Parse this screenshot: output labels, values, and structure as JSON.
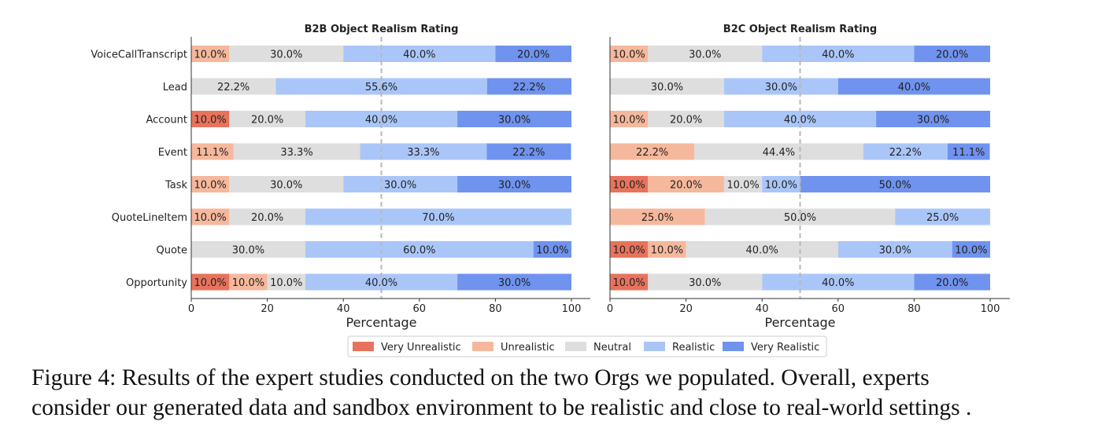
{
  "colors": {
    "Very Unrealistic": "#e8735c",
    "Unrealistic": "#f6b89c",
    "Neutral": "#dedede",
    "Realistic": "#aac6f9",
    "Very Realistic": "#6f93ee"
  },
  "chart_data": [
    {
      "type": "bar",
      "orientation": "horizontal",
      "stacked": true,
      "title": "B2B Object Realism Rating",
      "xlabel": "Percentage",
      "ylabel": "",
      "xlim": [
        0,
        100
      ],
      "xticks": [
        0,
        20,
        40,
        60,
        80,
        100
      ],
      "reference_line_x": 50,
      "categories": [
        "VoiceCallTranscript",
        "Lead",
        "Account",
        "Event",
        "Task",
        "QuoteLineItem",
        "Quote",
        "Opportunity"
      ],
      "series": [
        {
          "name": "Very Unrealistic",
          "values": [
            0,
            0,
            10.0,
            0,
            0,
            0,
            0,
            10.0
          ]
        },
        {
          "name": "Unrealistic",
          "values": [
            10.0,
            0,
            0,
            11.1,
            10.0,
            10.0,
            0,
            10.0
          ]
        },
        {
          "name": "Neutral",
          "values": [
            30.0,
            22.2,
            20.0,
            33.3,
            30.0,
            20.0,
            30.0,
            10.0
          ]
        },
        {
          "name": "Realistic",
          "values": [
            40.0,
            55.6,
            40.0,
            33.3,
            30.0,
            70.0,
            60.0,
            40.0
          ]
        },
        {
          "name": "Very Realistic",
          "values": [
            20.0,
            22.2,
            30.0,
            22.2,
            30.0,
            0,
            10.0,
            30.0
          ]
        }
      ]
    },
    {
      "type": "bar",
      "orientation": "horizontal",
      "stacked": true,
      "title": "B2C Object Realism Rating",
      "xlabel": "Percentage",
      "ylabel": "",
      "xlim": [
        0,
        100
      ],
      "xticks": [
        0,
        20,
        40,
        60,
        80,
        100
      ],
      "reference_line_x": 50,
      "categories": [
        "VoiceCallTranscript",
        "Lead",
        "Account",
        "Event",
        "Task",
        "QuoteLineItem",
        "Quote",
        "Opportunity"
      ],
      "series": [
        {
          "name": "Very Unrealistic",
          "values": [
            0,
            0,
            0,
            0,
            10.0,
            0,
            10.0,
            10.0
          ]
        },
        {
          "name": "Unrealistic",
          "values": [
            10.0,
            0,
            10.0,
            22.2,
            20.0,
            25.0,
            10.0,
            0
          ]
        },
        {
          "name": "Neutral",
          "values": [
            30.0,
            30.0,
            20.0,
            44.4,
            10.0,
            50.0,
            40.0,
            30.0
          ]
        },
        {
          "name": "Realistic",
          "values": [
            40.0,
            30.0,
            40.0,
            22.2,
            10.0,
            25.0,
            30.0,
            40.0
          ]
        },
        {
          "name": "Very Realistic",
          "values": [
            20.0,
            40.0,
            30.0,
            11.1,
            50.0,
            0,
            10.0,
            20.0
          ]
        }
      ]
    }
  ],
  "legend": [
    "Very Unrealistic",
    "Unrealistic",
    "Neutral",
    "Realistic",
    "Very Realistic"
  ],
  "caption": {
    "line1": "Figure 4: Results of the expert studies conducted on the two Orgs we populated. Overall, experts",
    "line2": "consider our generated data and sandbox environment to be realistic and close to real-world settings ."
  }
}
